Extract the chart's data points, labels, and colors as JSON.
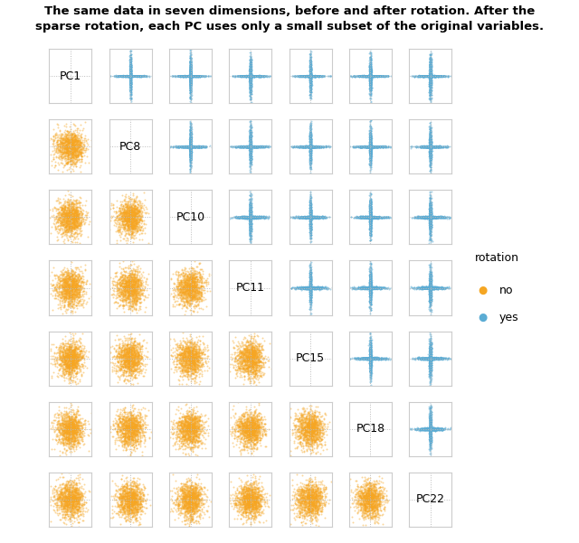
{
  "title_line1": "The same data in seven dimensions, before and after rotation. After the",
  "title_line2": "sparse rotation, each PC uses only a small subset of the original variables.",
  "pcs": [
    "PC1",
    "PC8",
    "PC10",
    "PC11",
    "PC15",
    "PC18",
    "PC22"
  ],
  "orange_color": "#F5A623",
  "blue_color": "#5BACD4",
  "n_points": 1200,
  "seed": 42,
  "legend_title": "rotation",
  "legend_no": "no",
  "legend_yes": "yes",
  "figsize": [
    6.4,
    6.01
  ],
  "dpi": 100,
  "pc_scales": [
    2.5,
    1.4,
    1.2,
    1.0,
    1.1,
    0.9,
    0.9
  ],
  "blue_scales": [
    3.0,
    2.0,
    1.5,
    1.2,
    1.5,
    1.2,
    1.0
  ]
}
